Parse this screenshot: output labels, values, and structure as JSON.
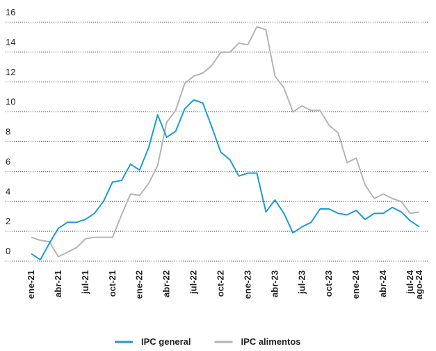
{
  "chart_data": {
    "type": "line",
    "categories": [
      "ene-21",
      null,
      null,
      "abr-21",
      null,
      null,
      "jul-21",
      null,
      null,
      "oct-21",
      null,
      null,
      "ene-22",
      null,
      null,
      "abr-22",
      null,
      null,
      "jul-22",
      null,
      null,
      "oct-22",
      null,
      null,
      "ene-23",
      null,
      null,
      "abr-23",
      null,
      null,
      "jul-23",
      null,
      null,
      "oct-23",
      null,
      null,
      "ene-24",
      null,
      null,
      "abr-24",
      null,
      null,
      "jul-24",
      "ago-24"
    ],
    "series": [
      {
        "name": "IPC general",
        "color": "#1a9bd7",
        "values": [
          0.5,
          0.1,
          1.2,
          2.2,
          2.6,
          2.6,
          2.8,
          3.2,
          4.0,
          5.3,
          5.4,
          6.5,
          6.1,
          7.6,
          9.8,
          8.3,
          8.7,
          10.2,
          10.8,
          10.6,
          9.0,
          7.3,
          6.8,
          5.7,
          5.9,
          5.9,
          3.3,
          4.1,
          3.2,
          1.9,
          2.3,
          2.6,
          3.5,
          3.5,
          3.2,
          3.1,
          3.4,
          2.8,
          3.2,
          3.2,
          3.6,
          3.3,
          2.7,
          2.3
        ]
      },
      {
        "name": "IPC alimentos",
        "color": "#b4b4b4",
        "values": [
          1.6,
          1.4,
          1.3,
          0.3,
          0.6,
          0.9,
          1.5,
          1.6,
          1.6,
          1.6,
          3.1,
          4.5,
          4.4,
          5.2,
          6.4,
          9.3,
          10.1,
          11.9,
          12.4,
          12.6,
          13.1,
          14.0,
          14.0,
          14.6,
          14.5,
          15.7,
          15.5,
          12.4,
          11.6,
          10.0,
          10.4,
          10.1,
          10.1,
          9.1,
          8.6,
          6.6,
          6.9,
          5.1,
          4.2,
          4.5,
          4.2,
          4.0,
          3.2,
          3.3
        ]
      }
    ],
    "ylim": [
      0,
      16
    ],
    "yticks": [
      0,
      2,
      4,
      6,
      8,
      10,
      12,
      14,
      16
    ],
    "grid": true
  }
}
